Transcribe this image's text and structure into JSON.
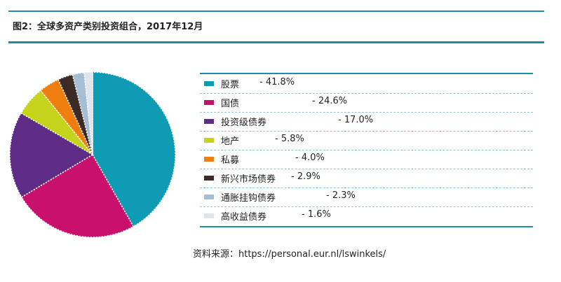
{
  "figure": {
    "title": "图2：全球多资产类别投资组合，2017年12月",
    "source": "资料来源：https://personal.eur.nl/lswinkels/"
  },
  "chart_data": {
    "type": "pie",
    "title": "图2：全球多资产类别投资组合，2017年12月",
    "legend_position": "right",
    "categories": [
      "股票",
      "国债",
      "投资级债券",
      "地产",
      "私募",
      "新兴市场债券",
      "通胀挂钩债券",
      "高收益债券"
    ],
    "values": [
      41.8,
      24.6,
      17.0,
      5.8,
      4.0,
      2.9,
      2.3,
      1.6
    ],
    "labels": [
      "- 41.8%",
      "- 24.6%",
      "- 17.0%",
      "- 5.8%",
      "- 4.0%",
      "- 2.9%",
      "- 2.3%",
      "- 1.6%"
    ],
    "colors": [
      "#0f9bb4",
      "#c8106c",
      "#5e2b86",
      "#c5d31d",
      "#ef7d0f",
      "#3b2a25",
      "#a6bed4",
      "#dfe5ea"
    ]
  }
}
